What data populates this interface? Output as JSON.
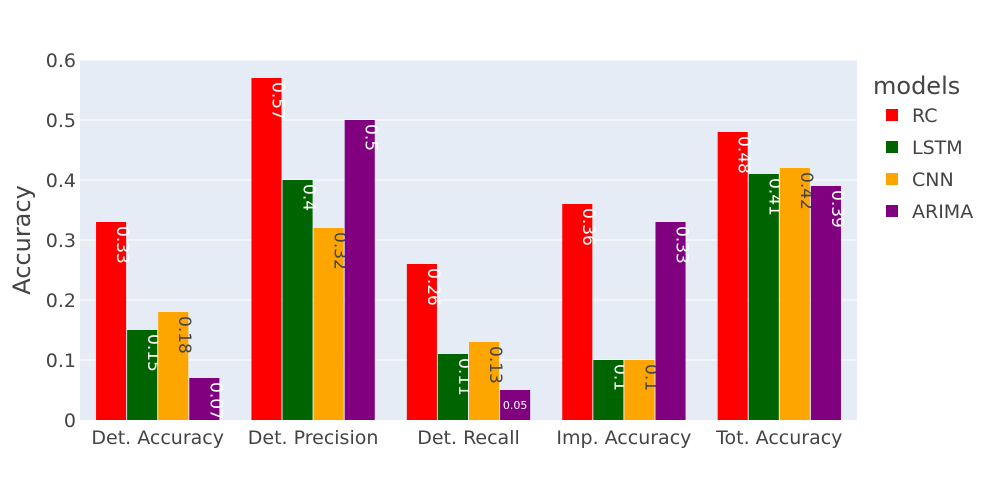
{
  "chart_data": {
    "type": "bar",
    "ylabel": "Accuracy",
    "ylim": [
      0,
      0.6
    ],
    "yticks": [
      "0",
      "0.1",
      "0.2",
      "0.3",
      "0.4",
      "0.5",
      "0.6"
    ],
    "grid": true,
    "legend_position": "right",
    "legend_title": "models",
    "categories": [
      "Det. Accuracy",
      "Det. Precision",
      "Det. Recall",
      "Imp. Accuracy",
      "Tot. Accuracy"
    ],
    "series": [
      {
        "name": "RC",
        "color": "#ff0000",
        "values": [
          0.33,
          0.57,
          0.26,
          0.36,
          0.48
        ],
        "labels": [
          "0.33",
          "0.57",
          "0.26",
          "0.36",
          "0.48"
        ]
      },
      {
        "name": "LSTM",
        "color": "#006400",
        "values": [
          0.15,
          0.4,
          0.11,
          0.1,
          0.41
        ],
        "labels": [
          "0.15",
          "0.4",
          "0.11",
          "0.1",
          "0.41"
        ]
      },
      {
        "name": "CNN",
        "color": "#ffa500",
        "values": [
          0.18,
          0.32,
          0.13,
          0.1,
          0.42
        ],
        "labels": [
          "0.18",
          "0.32",
          "0.13",
          "0.1",
          "0.42"
        ]
      },
      {
        "name": "ARIMA",
        "color": "#800080",
        "values": [
          0.07,
          0.5,
          0.05,
          0.33,
          0.39
        ],
        "labels": [
          "0.07",
          "0.5",
          "0.05",
          "0.33",
          "0.39"
        ]
      }
    ]
  }
}
